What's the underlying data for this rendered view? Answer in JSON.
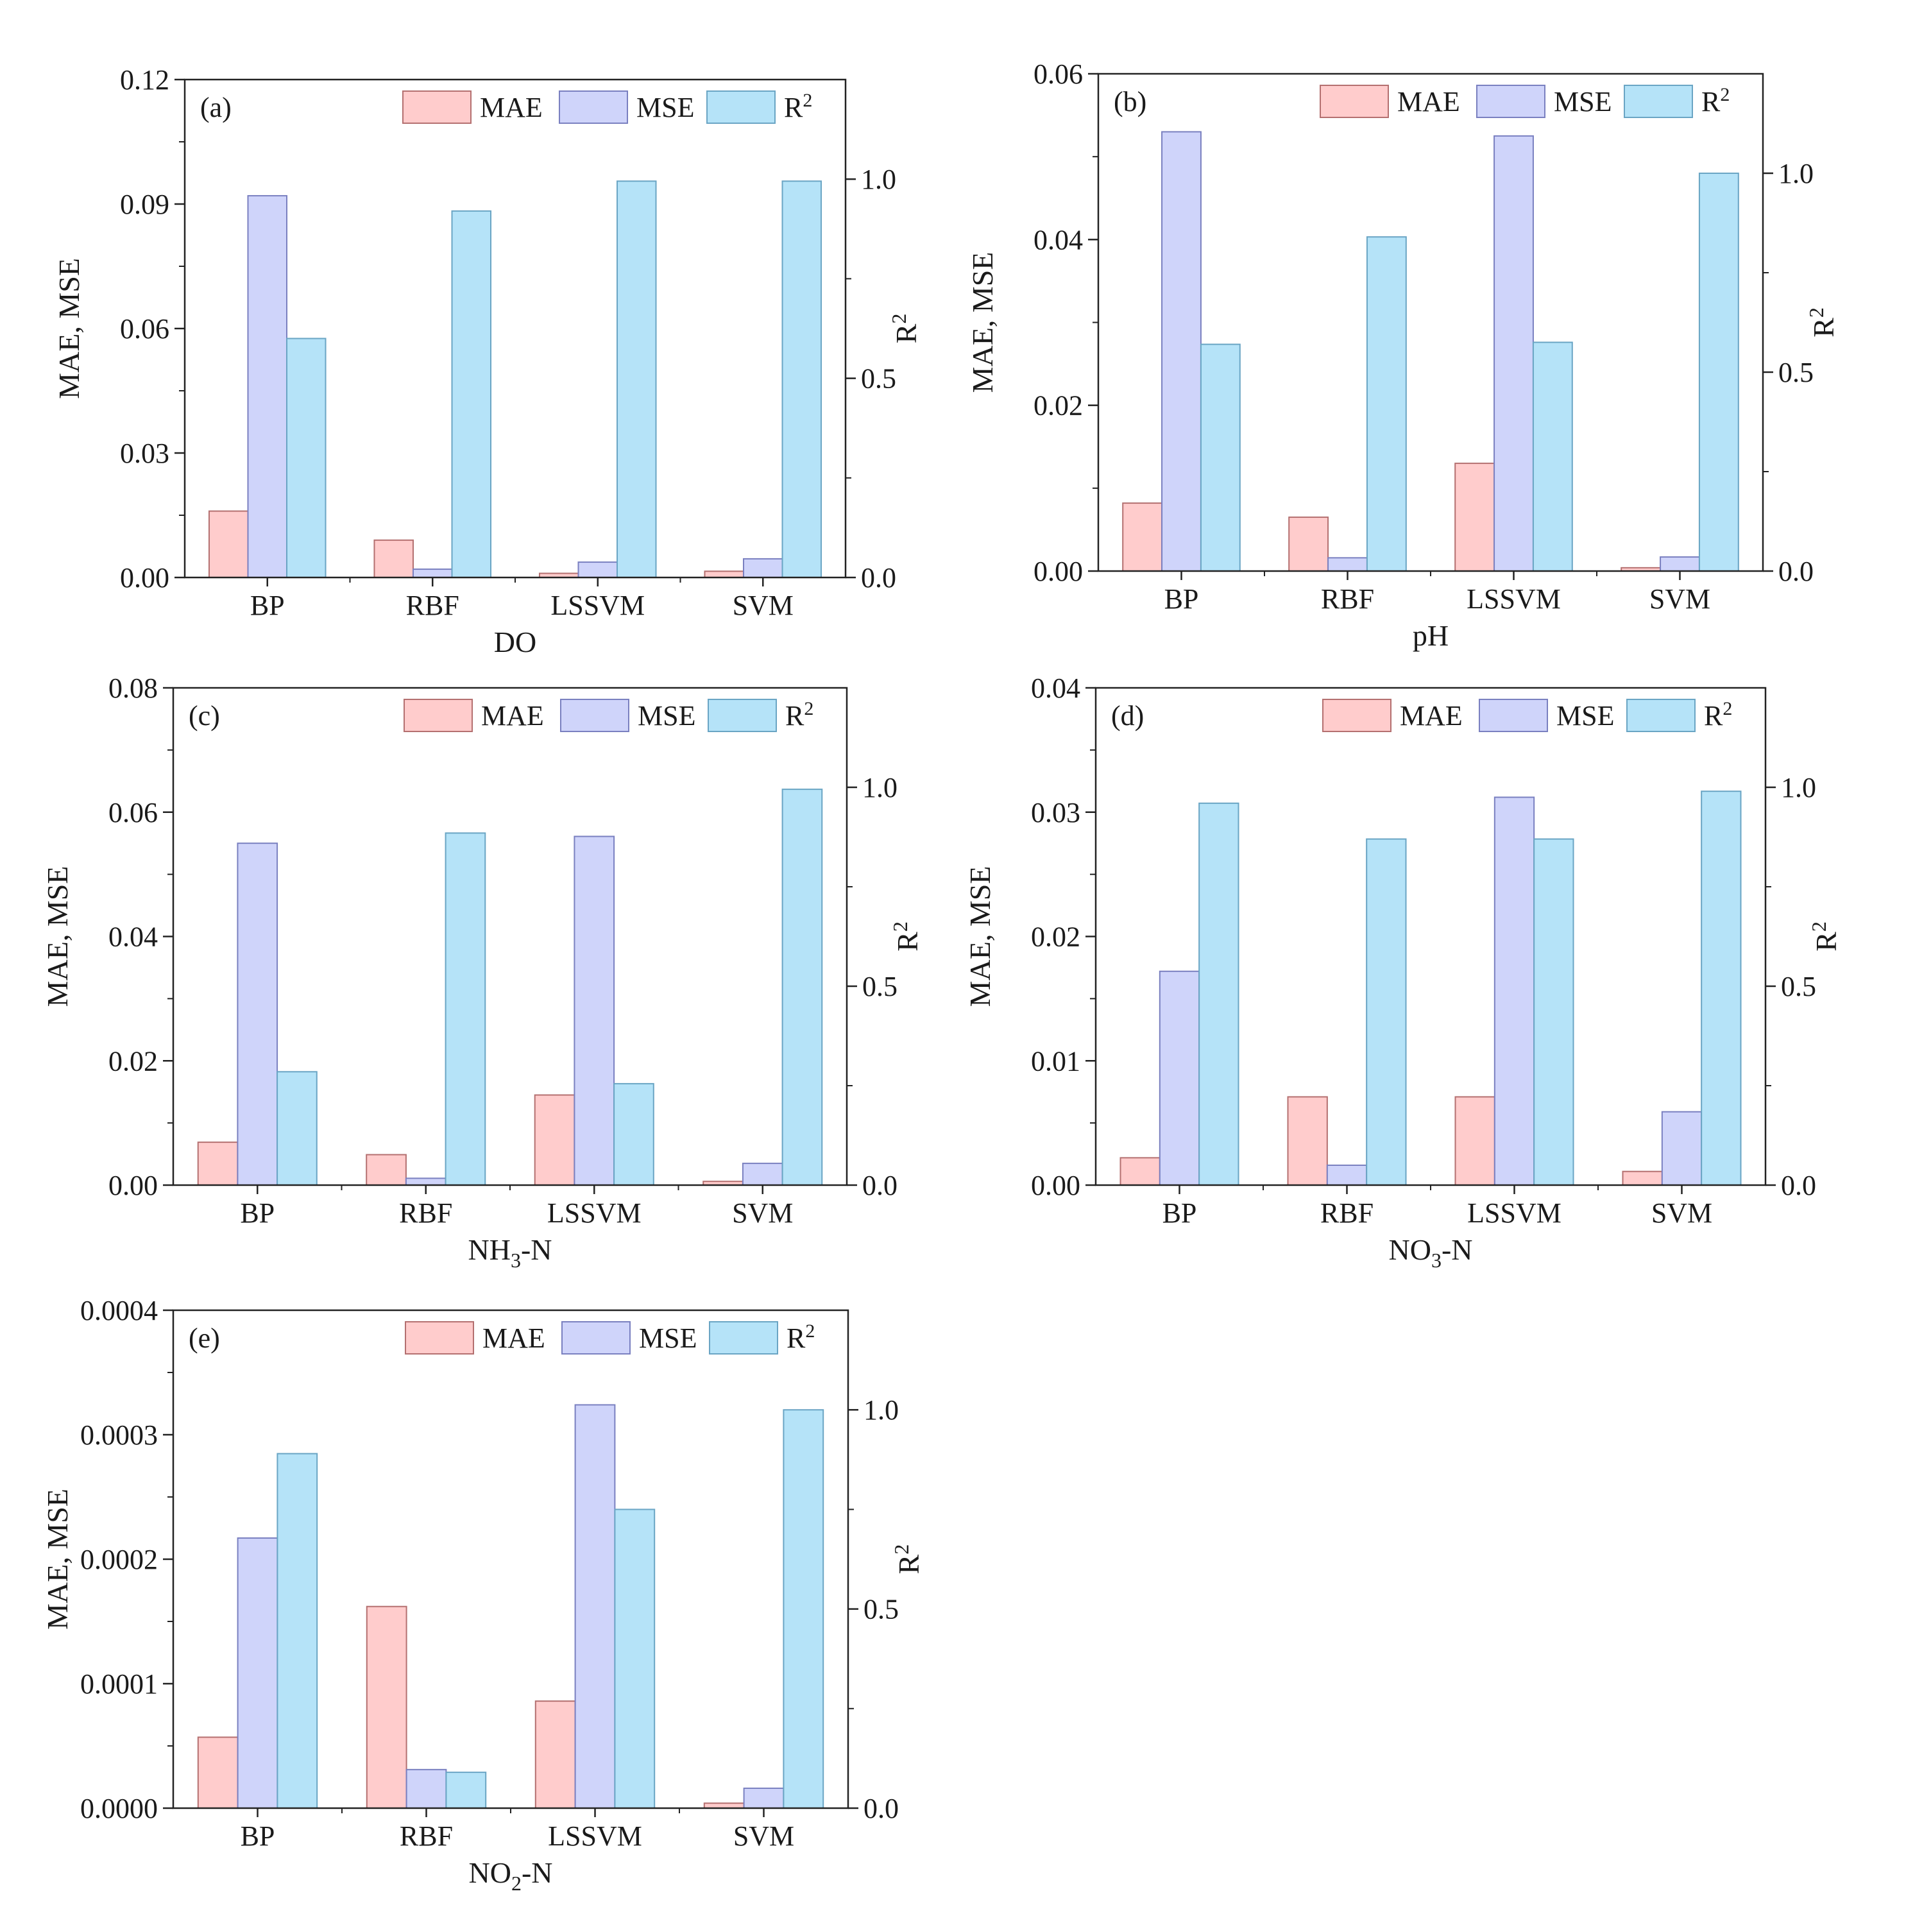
{
  "colors": {
    "MAE": "#ffcccc",
    "MSE": "#cfd4fa",
    "R2": "#b5e3f8",
    "MAE_stroke": "#b47070",
    "MSE_stroke": "#7a80c0",
    "R2_stroke": "#6aa5c4",
    "axis": "#222222"
  },
  "legend": {
    "labels": [
      "MAE",
      "MSE",
      "R"
    ],
    "superscript": "2",
    "placement": "top-right"
  },
  "chart_data": [
    {
      "type": "bar",
      "tag": "(a)",
      "xlabel": "DO",
      "ylabel_left": "MAE, MSE",
      "ylabel_right": "R",
      "ylabel_right_sup": "2",
      "categories": [
        "BP",
        "RBF",
        "LSSVM",
        "SVM"
      ],
      "left_ylim": [
        0,
        0.12
      ],
      "left_ticks": [
        "0.00",
        "0.03",
        "0.06",
        "0.09",
        "0.12"
      ],
      "right_ylim": [
        0,
        1.25
      ],
      "right_ticks": [
        "0.0",
        "0.5",
        "1.0"
      ],
      "series": [
        {
          "name": "MAE",
          "axis": "left",
          "values": [
            0.016,
            0.009,
            0.001,
            0.0015
          ]
        },
        {
          "name": "MSE",
          "axis": "left",
          "values": [
            0.092,
            0.002,
            0.0037,
            0.0045
          ]
        },
        {
          "name": "R2",
          "axis": "right",
          "values": [
            0.6,
            0.92,
            0.995,
            0.995
          ]
        }
      ]
    },
    {
      "type": "bar",
      "tag": "(b)",
      "xlabel": "pH",
      "ylabel_left": "MAE, MSE",
      "ylabel_right": "R",
      "ylabel_right_sup": "2",
      "categories": [
        "BP",
        "RBF",
        "LSSVM",
        "SVM"
      ],
      "left_ylim": [
        0,
        0.06
      ],
      "left_ticks": [
        "0.00",
        "0.02",
        "0.04",
        "0.06"
      ],
      "right_ylim": [
        0,
        1.25
      ],
      "right_ticks": [
        "0.0",
        "0.5",
        "1.0"
      ],
      "series": [
        {
          "name": "MAE",
          "axis": "left",
          "values": [
            0.0082,
            0.0065,
            0.013,
            0.0004
          ]
        },
        {
          "name": "MSE",
          "axis": "left",
          "values": [
            0.053,
            0.0016,
            0.0525,
            0.0017
          ]
        },
        {
          "name": "R2",
          "axis": "right",
          "values": [
            0.57,
            0.84,
            0.575,
            1.0
          ]
        }
      ]
    },
    {
      "type": "bar",
      "tag": "(c)",
      "xlabel": "NH",
      "xlabel_sub": "3",
      "xlabel_tail": "-N",
      "ylabel_left": "MAE, MSE",
      "ylabel_right": "R",
      "ylabel_right_sup": "2",
      "categories": [
        "BP",
        "RBF",
        "LSSVM",
        "SVM"
      ],
      "left_ylim": [
        0,
        0.08
      ],
      "left_ticks": [
        "0.00",
        "0.02",
        "0.04",
        "0.06",
        "0.08"
      ],
      "right_ylim": [
        0,
        1.25
      ],
      "right_ticks": [
        "0.0",
        "0.5",
        "1.0"
      ],
      "series": [
        {
          "name": "MAE",
          "axis": "left",
          "values": [
            0.0069,
            0.0049,
            0.0145,
            0.0006
          ]
        },
        {
          "name": "MSE",
          "axis": "left",
          "values": [
            0.055,
            0.0011,
            0.0561,
            0.0035
          ]
        },
        {
          "name": "R2",
          "axis": "right",
          "values": [
            0.285,
            0.885,
            0.255,
            0.995
          ]
        }
      ]
    },
    {
      "type": "bar",
      "tag": "(d)",
      "xlabel": "NO",
      "xlabel_sub": "3",
      "xlabel_tail": "-N",
      "ylabel_left": "MAE, MSE",
      "ylabel_right": "R",
      "ylabel_right_sup": "2",
      "categories": [
        "BP",
        "RBF",
        "LSSVM",
        "SVM"
      ],
      "left_ylim": [
        0,
        0.04
      ],
      "left_ticks": [
        "0.00",
        "0.01",
        "0.02",
        "0.03",
        "0.04"
      ],
      "right_ylim": [
        0,
        1.25
      ],
      "right_ticks": [
        "0.0",
        "0.5",
        "1.0"
      ],
      "series": [
        {
          "name": "MAE",
          "axis": "left",
          "values": [
            0.0022,
            0.0071,
            0.0071,
            0.0011
          ]
        },
        {
          "name": "MSE",
          "axis": "left",
          "values": [
            0.0172,
            0.0016,
            0.0312,
            0.0059
          ]
        },
        {
          "name": "R2",
          "axis": "right",
          "values": [
            0.96,
            0.87,
            0.87,
            0.99
          ]
        }
      ]
    },
    {
      "type": "bar",
      "tag": "(e)",
      "xlabel": "NO",
      "xlabel_sub": "2",
      "xlabel_tail": "-N",
      "ylabel_left": "MAE, MSE",
      "ylabel_right": "R",
      "ylabel_right_sup": "2",
      "categories": [
        "BP",
        "RBF",
        "LSSVM",
        "SVM"
      ],
      "left_ylim": [
        0,
        0.0004
      ],
      "left_ticks": [
        "0.0000",
        "0.0001",
        "0.0002",
        "0.0003",
        "0.0004"
      ],
      "right_ylim": [
        0,
        1.25
      ],
      "right_ticks": [
        "0.0",
        "0.5",
        "1.0"
      ],
      "series": [
        {
          "name": "MAE",
          "axis": "left",
          "values": [
            5.7e-05,
            0.000162,
            8.6e-05,
            4e-06
          ]
        },
        {
          "name": "MSE",
          "axis": "left",
          "values": [
            0.000217,
            3.1e-05,
            0.000324,
            1.6e-05
          ]
        },
        {
          "name": "R2",
          "axis": "right",
          "values": [
            0.89,
            0.09,
            0.75,
            1.0
          ]
        }
      ]
    }
  ]
}
